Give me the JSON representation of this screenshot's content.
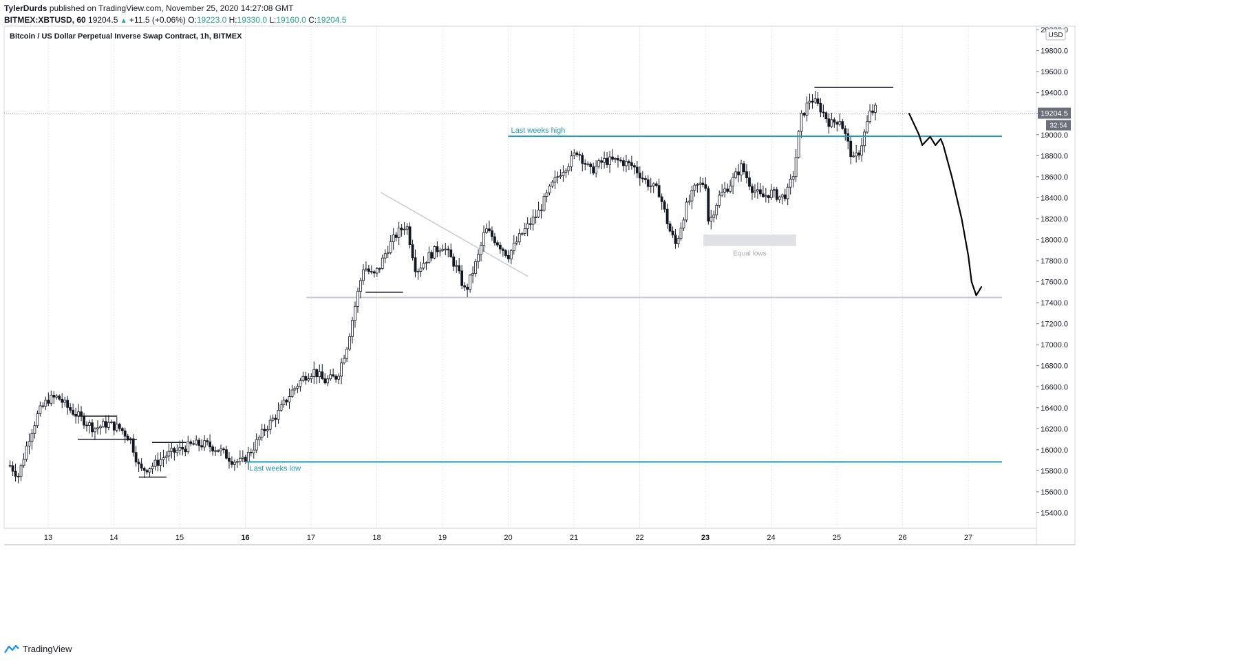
{
  "header": {
    "author": "TylerDurds",
    "published": "published on TradingView.com, November 25, 2020 14:27:08 GMT",
    "symbol": "BITMEX:XBTUSD, 60",
    "last": "19204.5",
    "change": "+11.5 (+0.06%)",
    "o_label": "O:",
    "o_value": "19223.0",
    "h_label": "H:",
    "h_value": "19330.0",
    "l_label": "L:",
    "l_value": "19160.0",
    "c_label": "C:",
    "c_value": "19204.5"
  },
  "footer": {
    "brand": "TradingView"
  },
  "chart_data": {
    "type": "candlestick",
    "title": "Bitcoin / US Dollar Perpetual Inverse Swap Contract, 1h, BITMEX",
    "currency": "USD",
    "ylim": [
      15250,
      20000
    ],
    "xlim": [
      12.4,
      28.0
    ],
    "y_ticks": [
      15400,
      15600,
      15800,
      16000,
      16200,
      16400,
      16600,
      16800,
      17000,
      17200,
      17400,
      17600,
      17800,
      18000,
      18200,
      18400,
      18600,
      18800,
      19000,
      19200,
      19400,
      19600,
      19800,
      20000
    ],
    "x_ticks": [
      {
        "v": 13,
        "label": "13",
        "bold": false
      },
      {
        "v": 14,
        "label": "14",
        "bold": false
      },
      {
        "v": 15,
        "label": "15",
        "bold": false
      },
      {
        "v": 16,
        "label": "16",
        "bold": true
      },
      {
        "v": 17,
        "label": "17",
        "bold": false
      },
      {
        "v": 18,
        "label": "18",
        "bold": false
      },
      {
        "v": 19,
        "label": "19",
        "bold": false
      },
      {
        "v": 20,
        "label": "20",
        "bold": false
      },
      {
        "v": 21,
        "label": "21",
        "bold": false
      },
      {
        "v": 22,
        "label": "22",
        "bold": false
      },
      {
        "v": 23,
        "label": "23",
        "bold": true
      },
      {
        "v": 24,
        "label": "24",
        "bold": false
      },
      {
        "v": 25,
        "label": "25",
        "bold": false
      },
      {
        "v": 26,
        "label": "26",
        "bold": false
      },
      {
        "v": 27,
        "label": "27",
        "bold": false
      }
    ],
    "last_price": {
      "value": 19204.5,
      "label": "19204.5",
      "countdown": "32:54"
    },
    "grid": true,
    "price_path": [
      [
        12.42,
        15850
      ],
      [
        12.55,
        15750
      ],
      [
        12.7,
        16100
      ],
      [
        12.85,
        16350
      ],
      [
        13.0,
        16480
      ],
      [
        13.15,
        16500
      ],
      [
        13.3,
        16400
      ],
      [
        13.5,
        16300
      ],
      [
        13.7,
        16200
      ],
      [
        13.9,
        16250
      ],
      [
        14.1,
        16200
      ],
      [
        14.25,
        16100
      ],
      [
        14.4,
        15800
      ],
      [
        14.6,
        15850
      ],
      [
        14.8,
        15950
      ],
      [
        15.0,
        16000
      ],
      [
        15.2,
        16050
      ],
      [
        15.4,
        16050
      ],
      [
        15.6,
        16000
      ],
      [
        15.8,
        15900
      ],
      [
        15.95,
        15880
      ],
      [
        16.1,
        16000
      ],
      [
        16.3,
        16200
      ],
      [
        16.5,
        16350
      ],
      [
        16.7,
        16550
      ],
      [
        16.9,
        16700
      ],
      [
        17.05,
        16750
      ],
      [
        17.2,
        16650
      ],
      [
        17.4,
        16700
      ],
      [
        17.55,
        17000
      ],
      [
        17.68,
        17400
      ],
      [
        17.8,
        17750
      ],
      [
        17.95,
        17650
      ],
      [
        18.05,
        17750
      ],
      [
        18.15,
        17900
      ],
      [
        18.3,
        18050
      ],
      [
        18.45,
        18150
      ],
      [
        18.6,
        17700
      ],
      [
        18.8,
        17850
      ],
      [
        19.0,
        17950
      ],
      [
        19.2,
        17750
      ],
      [
        19.35,
        17500
      ],
      [
        19.55,
        17850
      ],
      [
        19.65,
        18100
      ],
      [
        19.8,
        18000
      ],
      [
        20.0,
        17850
      ],
      [
        20.2,
        18050
      ],
      [
        20.45,
        18250
      ],
      [
        20.65,
        18500
      ],
      [
        20.8,
        18650
      ],
      [
        20.95,
        18750
      ],
      [
        21.05,
        18850
      ],
      [
        21.25,
        18650
      ],
      [
        21.45,
        18750
      ],
      [
        21.7,
        18750
      ],
      [
        21.9,
        18700
      ],
      [
        22.1,
        18550
      ],
      [
        22.3,
        18450
      ],
      [
        22.45,
        18100
      ],
      [
        22.55,
        17950
      ],
      [
        22.7,
        18300
      ],
      [
        22.85,
        18500
      ],
      [
        23.0,
        18550
      ],
      [
        23.05,
        18150
      ],
      [
        23.2,
        18400
      ],
      [
        23.4,
        18550
      ],
      [
        23.55,
        18700
      ],
      [
        23.7,
        18500
      ],
      [
        23.85,
        18400
      ],
      [
        24.0,
        18450
      ],
      [
        24.15,
        18400
      ],
      [
        24.25,
        18450
      ],
      [
        24.35,
        18650
      ],
      [
        24.45,
        19150
      ],
      [
        24.6,
        19350
      ],
      [
        24.75,
        19250
      ],
      [
        24.9,
        19100
      ],
      [
        25.05,
        19150
      ],
      [
        25.15,
        18950
      ],
      [
        25.25,
        18750
      ],
      [
        25.35,
        18850
      ],
      [
        25.5,
        19200
      ],
      [
        25.6,
        19250
      ]
    ],
    "annotations": {
      "last_weeks_high": {
        "value": 18985,
        "label": "Last weeks high",
        "x_start": 20.0
      },
      "last_weeks_low": {
        "value": 15885,
        "label": "Last weeks low",
        "x_start": 16.0
      },
      "support_level": {
        "value": 17450,
        "x_start": 16.93
      },
      "equal_lows": {
        "label": "Equal lows",
        "x_start": 22.97,
        "x_end": 24.38,
        "y_top": 18050,
        "y_bottom": 17940
      },
      "trendline": {
        "from": [
          18.06,
          18450
        ],
        "to": [
          20.3,
          17650
        ]
      },
      "top_line": {
        "from": [
          24.66,
          19450
        ],
        "to": [
          25.86,
          19450
        ]
      },
      "projection": [
        [
          26.1,
          19200
        ],
        [
          26.25,
          19000
        ],
        [
          26.3,
          18900
        ],
        [
          26.42,
          18980
        ],
        [
          26.5,
          18900
        ],
        [
          26.58,
          18960
        ],
        [
          26.62,
          18900
        ],
        [
          26.75,
          18600
        ],
        [
          26.9,
          18200
        ],
        [
          27.0,
          17850
        ],
        [
          27.05,
          17600
        ],
        [
          27.12,
          17470
        ],
        [
          27.2,
          17550
        ]
      ]
    }
  }
}
